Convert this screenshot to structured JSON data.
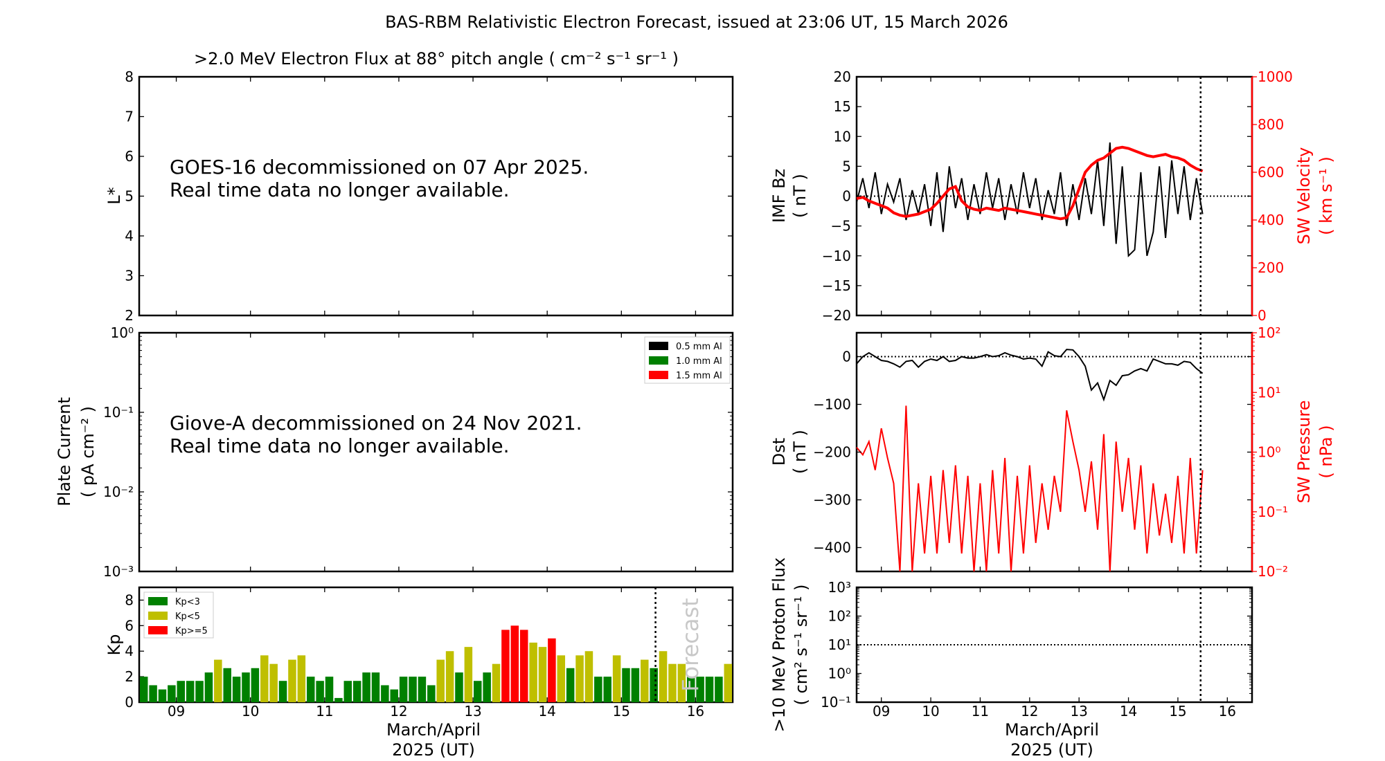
{
  "title": "BAS-RBM Relativistic Electron Forecast, issued at 23:06 UT, 15 March 2026",
  "xaxis": {
    "xlim": [
      8.5,
      16.5
    ],
    "ticks": [
      9,
      10,
      11,
      12,
      13,
      14,
      15,
      16
    ],
    "tick_labels": [
      "09",
      "10",
      "11",
      "12",
      "13",
      "14",
      "15",
      "16"
    ],
    "label_line1": "March/April",
    "label_line2": "2025 (UT)",
    "forecast_start_day": 15.46
  },
  "colors": {
    "red": "#ff0000",
    "green": "#008000",
    "yellow": "#bfbf00",
    "black": "#000000",
    "forecast_text": "#c8c8c8"
  },
  "chart_data": [
    {
      "id": "electron-flux",
      "type": "line",
      "title": ">2.0 MeV Electron Flux at 88° pitch angle ( cm⁻² s⁻¹ sr⁻¹ )",
      "ylabel": "L*",
      "ylim": [
        2,
        8
      ],
      "yticks": [
        2,
        3,
        4,
        5,
        6,
        7,
        8
      ],
      "ytick_labels": [
        "2",
        "3",
        "4",
        "5",
        "6",
        "7",
        "8"
      ],
      "annotation": [
        "GOES-16 decommissioned on 07 Apr 2025.",
        "Real time data no longer available."
      ]
    },
    {
      "id": "plate-current",
      "type": "line",
      "yscale": "log",
      "ylabel": [
        "Plate Current",
        "( pA cm⁻² )"
      ],
      "ylim": [
        0.001,
        1
      ],
      "ytick_labels": [
        "10⁻³",
        "10⁻²",
        "10⁻¹",
        "10⁰"
      ],
      "legend": [
        {
          "label": "0.5 mm Al",
          "color": "#000000"
        },
        {
          "label": "1.0 mm Al",
          "color": "#008000"
        },
        {
          "label": "1.5 mm Al",
          "color": "#ff0000"
        }
      ],
      "legend_position": "top-right",
      "annotation": [
        "Giove-A decommissioned on 24 Nov 2021.",
        "Real time data no longer available."
      ]
    },
    {
      "id": "kp",
      "type": "bar",
      "ylabel": "Kp",
      "ylim": [
        0,
        9
      ],
      "yticks": [
        0,
        2,
        4,
        6,
        8
      ],
      "ytick_labels": [
        "0",
        "2",
        "4",
        "6",
        "8"
      ],
      "x_start": 8.5,
      "bar_interval_days": 0.125,
      "values": [
        2.0,
        1.33,
        1.0,
        1.33,
        1.67,
        1.67,
        1.67,
        2.33,
        3.33,
        2.67,
        2.0,
        2.33,
        2.67,
        3.67,
        3.0,
        1.67,
        3.33,
        3.67,
        2.0,
        1.67,
        2.0,
        0.33,
        1.67,
        1.67,
        2.33,
        2.33,
        1.33,
        1.0,
        2.0,
        2.0,
        2.0,
        1.33,
        3.33,
        4.0,
        2.33,
        4.33,
        1.67,
        2.33,
        3.0,
        5.67,
        6.0,
        5.67,
        4.67,
        4.33,
        5.0,
        3.67,
        2.67,
        3.67,
        4.0,
        2.0,
        2.0,
        3.67,
        2.67,
        2.67,
        3.33,
        2.67,
        4.0,
        3.0,
        3.0,
        2.0,
        2.0,
        2.0,
        2.0,
        3.0
      ],
      "legend": [
        {
          "label": "Kp<3",
          "color": "#008000"
        },
        {
          "label": "Kp<5",
          "color": "#bfbf00"
        },
        {
          "label": "Kp>=5",
          "color": "#ff0000"
        }
      ],
      "legend_position": "top-left",
      "forecast_label": "Forecast"
    },
    {
      "id": "imf-sw-velocity",
      "type": "line",
      "ylabel": [
        "IMF Bz",
        "( nT )"
      ],
      "ylim": [
        -20,
        20
      ],
      "yticks": [
        -20,
        -15,
        -10,
        -5,
        0,
        5,
        10,
        15,
        20
      ],
      "ytick_labels": [
        "−20",
        "−15",
        "−10",
        "−5",
        "0",
        "5",
        "10",
        "15",
        "20"
      ],
      "ylabel_right": [
        "SW Velocity",
        "( km s⁻¹ )"
      ],
      "ylim_right": [
        0,
        1000
      ],
      "yticks_right": [
        0,
        200,
        400,
        600,
        800,
        1000
      ],
      "ytick_labels_right": [
        "0",
        "200",
        "400",
        "600",
        "800",
        "1000"
      ],
      "x_start": 8.5,
      "x_step_days": 0.125,
      "series": [
        {
          "axis": "left",
          "color": "#000000",
          "values": [
            -1,
            3,
            -2,
            4,
            -3,
            2,
            -1,
            3,
            -4,
            1,
            -3,
            2,
            -5,
            4,
            -6,
            5,
            -2,
            3,
            -4,
            2,
            -3,
            4,
            -2,
            3,
            -4,
            2,
            -3,
            4,
            -2,
            3,
            -4,
            1,
            -3,
            4,
            -5,
            2,
            -4,
            3,
            -3,
            6,
            -5,
            9,
            -8,
            5,
            -10,
            -9,
            4,
            -10,
            -6,
            5,
            -7,
            6,
            -3,
            5,
            -4,
            3,
            -3
          ]
        },
        {
          "axis": "right",
          "color": "#ff0000",
          "values": [
            490,
            495,
            480,
            470,
            460,
            450,
            430,
            420,
            415,
            420,
            425,
            435,
            445,
            470,
            500,
            530,
            540,
            480,
            455,
            445,
            440,
            450,
            445,
            440,
            450,
            445,
            440,
            435,
            430,
            425,
            420,
            415,
            410,
            405,
            410,
            460,
            530,
            600,
            630,
            650,
            660,
            680,
            700,
            705,
            700,
            690,
            680,
            670,
            665,
            670,
            675,
            665,
            660,
            650,
            630,
            615,
            605
          ]
        }
      ]
    },
    {
      "id": "dst-sw-pressure",
      "type": "line",
      "ylabel": [
        "Dst",
        "( nT )"
      ],
      "ylim": [
        -450,
        50
      ],
      "yticks": [
        -400,
        -300,
        -200,
        -100,
        0
      ],
      "ytick_labels": [
        "−400",
        "−300",
        "−200",
        "−100",
        "0"
      ],
      "ylabel_right": [
        "SW Pressure",
        "( nPa )"
      ],
      "yscale_right": "log",
      "ylim_right": [
        0.01,
        100
      ],
      "ytick_labels_right": [
        "10⁻²",
        "10⁻¹",
        "10⁰",
        "10¹",
        "10²"
      ],
      "x_start": 8.5,
      "x_step_days": 0.125,
      "series": [
        {
          "axis": "left",
          "color": "#000000",
          "values": [
            -15,
            0,
            8,
            0,
            -8,
            -10,
            -15,
            -22,
            -10,
            -8,
            -22,
            -10,
            -5,
            -8,
            0,
            -10,
            -8,
            0,
            -3,
            -3,
            0,
            4,
            0,
            2,
            8,
            3,
            0,
            -5,
            -3,
            -5,
            -20,
            10,
            2,
            0,
            15,
            14,
            0,
            -20,
            -70,
            -55,
            -90,
            -50,
            -60,
            -40,
            -38,
            -30,
            -25,
            -30,
            -5,
            -10,
            -15,
            -15,
            -18,
            -10,
            -12,
            -25,
            -35
          ]
        },
        {
          "axis": "right",
          "color": "#ff0000",
          "values": [
            1.2,
            0.9,
            1.5,
            0.5,
            2.5,
            0.8,
            0.3,
            0.01,
            6,
            0.01,
            0.3,
            0.02,
            0.4,
            0.02,
            0.5,
            0.03,
            0.6,
            0.02,
            0.4,
            0.01,
            0.3,
            0.01,
            0.5,
            0.02,
            0.8,
            0.01,
            0.4,
            0.02,
            0.6,
            0.03,
            0.3,
            0.05,
            0.4,
            0.1,
            5,
            1.5,
            0.5,
            0.1,
            0.7,
            0.05,
            2,
            0.01,
            1.5,
            0.1,
            0.8,
            0.05,
            0.6,
            0.02,
            0.3,
            0.04,
            0.2,
            0.03,
            0.4,
            0.02,
            0.8,
            0.02,
            0.5
          ]
        }
      ]
    },
    {
      "id": "proton-flux",
      "type": "line",
      "yscale": "log",
      "ylabel": [
        ">10 MeV Proton Flux",
        "( cm² s⁻¹ sr⁻¹ )"
      ],
      "ylim": [
        0.1,
        1000
      ],
      "ytick_labels": [
        "10⁻¹",
        "10⁰",
        "10¹",
        "10²",
        "10³"
      ],
      "threshold": 10
    }
  ]
}
